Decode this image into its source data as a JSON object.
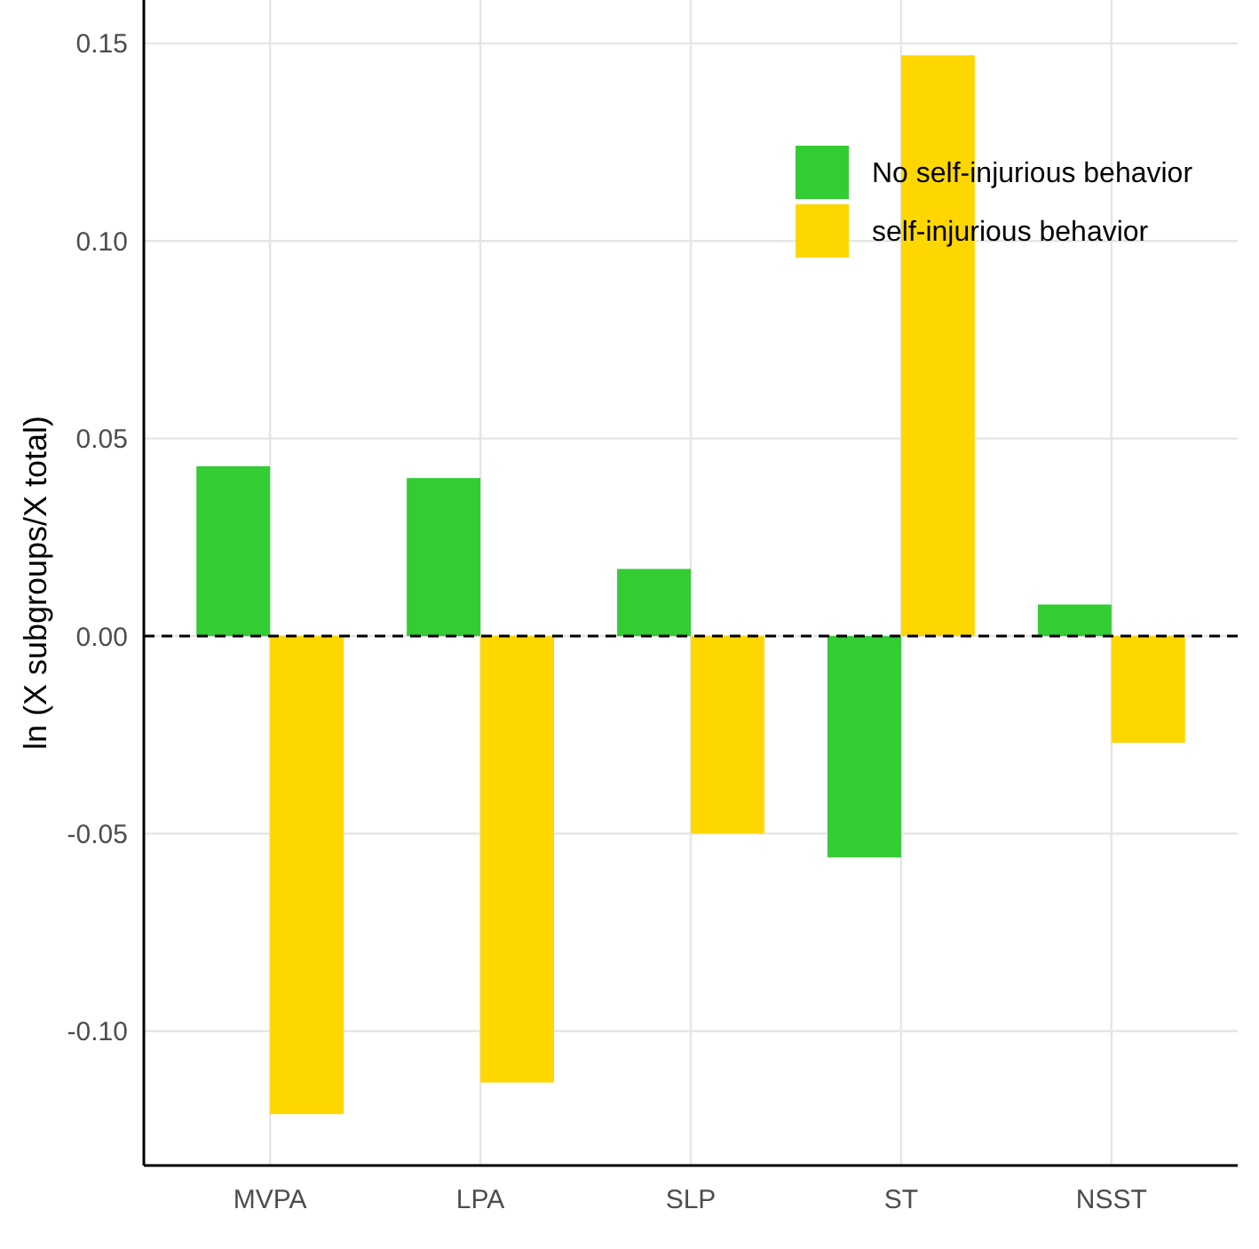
{
  "chart_data": {
    "type": "bar",
    "ylabel": "ln (X subgroups/X total)",
    "categories": [
      "MVPA",
      "LPA",
      "SLP",
      "ST",
      "NSST"
    ],
    "series": [
      {
        "name": "No self-injurious behavior",
        "color": "#33cc33",
        "values": [
          0.043,
          0.04,
          0.017,
          -0.056,
          0.008
        ]
      },
      {
        "name": "self-injurious behavior",
        "color": "#ffd700",
        "values": [
          -0.121,
          -0.113,
          -0.05,
          0.147,
          -0.027
        ]
      }
    ],
    "ylim": [
      -0.134,
      0.161
    ],
    "yticks": [
      {
        "value": -0.1,
        "label": "-0.10"
      },
      {
        "value": -0.05,
        "label": "-0.05"
      },
      {
        "value": 0,
        "label": "0.00"
      },
      {
        "value": 0.05,
        "label": "0.05"
      },
      {
        "value": 0.1,
        "label": "0.10"
      },
      {
        "value": 0.15,
        "label": "0.15"
      }
    ],
    "grid": true,
    "legend": "top right",
    "ref_lines": [
      {
        "axis": "y",
        "value": 0,
        "color": "#000000",
        "line_style": "dashed"
      }
    ]
  }
}
